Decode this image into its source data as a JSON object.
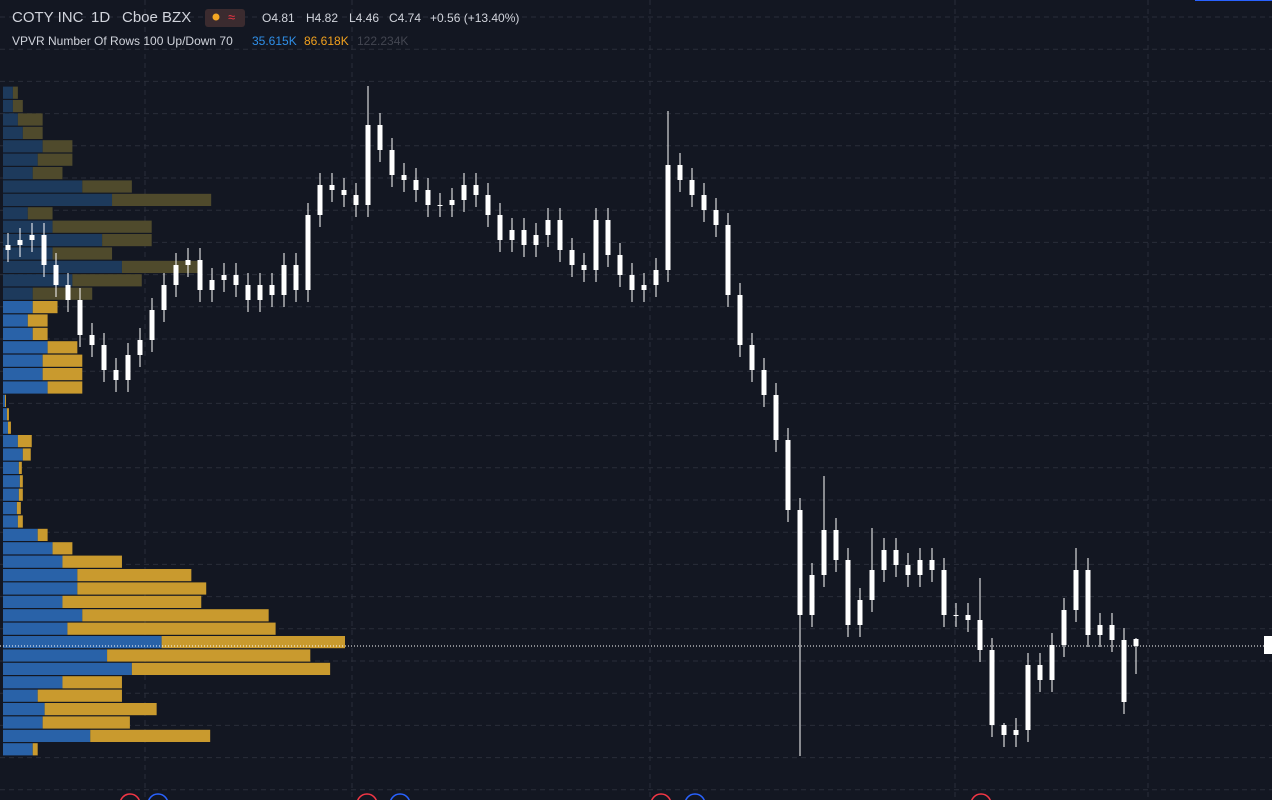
{
  "chart_data": {
    "type": "candlestick",
    "title": "COTY INC",
    "interval": "1D",
    "exchange": "Cboe BZX",
    "ohlc_labels": [
      "O4.81",
      "H4.82",
      "L4.46",
      "C4.74"
    ],
    "change": "+0.56 (+13.40%)",
    "indicator": "VPVR Number Of Rows 100 Up/Down 70",
    "indicator_values": [
      "35.615K",
      "86.618K",
      "122.234K"
    ],
    "ylim": [
      3.2,
      11.2
    ],
    "candle_color": "#ffffff",
    "open": [
      8.7,
      8.75,
      8.8,
      8.85,
      8.55,
      8.35,
      8.2,
      7.85,
      7.75,
      7.5,
      7.4,
      7.65,
      7.8,
      8.1,
      8.35,
      8.55,
      8.6,
      8.3,
      8.4,
      8.45,
      8.35,
      8.2,
      8.35,
      8.25,
      8.55,
      8.3,
      9.05,
      9.35,
      9.3,
      9.25,
      9.15,
      9.95,
      9.7,
      9.45,
      9.4,
      9.3,
      9.15,
      9.15,
      9.2,
      9.35,
      9.25,
      9.05,
      8.8,
      8.9,
      8.75,
      8.85,
      9.0,
      8.7,
      8.55,
      8.5,
      9.0,
      8.65,
      8.45,
      8.3,
      8.35,
      8.5,
      9.55,
      9.4,
      9.25,
      9.1,
      8.95,
      8.25,
      7.75,
      7.5,
      7.25,
      6.8,
      6.1,
      5.05,
      5.45,
      5.9,
      5.6,
      4.95,
      5.2,
      5.5,
      5.7,
      5.55,
      5.45,
      5.6,
      5.5,
      5.05,
      5.05,
      5.0,
      4.7,
      3.95,
      3.85,
      3.9,
      4.55,
      4.4,
      4.75,
      5.1,
      5.5,
      4.85,
      4.95,
      4.8,
      4.81
    ],
    "high": [
      8.87,
      8.92,
      8.97,
      8.97,
      8.67,
      8.47,
      8.32,
      7.97,
      7.87,
      7.62,
      7.77,
      7.92,
      8.22,
      8.47,
      8.67,
      8.72,
      8.72,
      8.52,
      8.57,
      8.57,
      8.47,
      8.47,
      8.47,
      8.67,
      8.67,
      9.17,
      9.47,
      9.47,
      9.42,
      9.37,
      10.34,
      10.07,
      9.82,
      9.57,
      9.52,
      9.42,
      9.27,
      9.32,
      9.47,
      9.47,
      9.37,
      9.17,
      9.02,
      9.02,
      8.97,
      9.12,
      9.12,
      8.82,
      8.67,
      9.12,
      9.12,
      8.77,
      8.57,
      8.47,
      8.62,
      10.09,
      9.67,
      9.52,
      9.37,
      9.22,
      9.07,
      8.37,
      7.87,
      7.62,
      7.37,
      6.92,
      6.22,
      5.57,
      6.44,
      6.02,
      5.72,
      5.32,
      5.92,
      5.82,
      5.82,
      5.67,
      5.72,
      5.72,
      5.62,
      5.17,
      5.17,
      5.42,
      4.82,
      3.97,
      4.02,
      4.67,
      4.67,
      4.87,
      5.22,
      5.72,
      5.62,
      5.07,
      5.07,
      4.92,
      4.82
    ],
    "low": [
      8.58,
      8.63,
      8.68,
      8.43,
      8.23,
      8.08,
      7.73,
      7.63,
      7.38,
      7.28,
      7.28,
      7.53,
      7.68,
      7.98,
      8.23,
      8.43,
      8.18,
      8.18,
      8.28,
      8.23,
      8.08,
      8.08,
      8.13,
      8.13,
      8.18,
      8.18,
      8.93,
      9.18,
      9.13,
      9.03,
      9.03,
      9.58,
      9.33,
      9.28,
      9.18,
      9.03,
      9.03,
      9.03,
      9.08,
      9.13,
      8.93,
      8.68,
      8.68,
      8.63,
      8.63,
      8.73,
      8.58,
      8.43,
      8.38,
      8.38,
      8.53,
      8.33,
      8.18,
      8.18,
      8.23,
      8.38,
      9.28,
      9.13,
      8.98,
      8.83,
      8.13,
      7.63,
      7.38,
      7.13,
      6.68,
      5.98,
      3.64,
      4.93,
      5.33,
      5.48,
      4.83,
      4.83,
      5.08,
      5.38,
      5.43,
      5.33,
      5.33,
      5.38,
      4.93,
      4.93,
      4.88,
      4.58,
      3.83,
      3.73,
      3.73,
      3.78,
      4.28,
      4.28,
      4.63,
      4.98,
      4.73,
      4.73,
      4.68,
      4.06,
      4.46
    ],
    "close": [
      8.75,
      8.8,
      8.85,
      8.55,
      8.35,
      8.2,
      7.85,
      7.75,
      7.5,
      7.4,
      7.65,
      7.8,
      8.1,
      8.35,
      8.55,
      8.6,
      8.3,
      8.4,
      8.45,
      8.35,
      8.2,
      8.35,
      8.25,
      8.55,
      8.3,
      9.05,
      9.35,
      9.3,
      9.25,
      9.15,
      9.95,
      9.7,
      9.45,
      9.4,
      9.3,
      9.15,
      9.15,
      9.2,
      9.35,
      9.25,
      9.05,
      8.8,
      8.9,
      8.75,
      8.85,
      9.0,
      8.7,
      8.55,
      8.5,
      9.0,
      8.65,
      8.45,
      8.3,
      8.35,
      8.5,
      9.55,
      9.4,
      9.25,
      9.1,
      8.95,
      8.25,
      7.75,
      7.5,
      7.25,
      6.8,
      6.1,
      5.05,
      5.45,
      5.9,
      5.6,
      4.95,
      5.2,
      5.5,
      5.7,
      5.55,
      5.45,
      5.6,
      5.5,
      5.05,
      5.05,
      5.0,
      4.7,
      3.95,
      3.85,
      3.9,
      4.55,
      4.4,
      4.75,
      5.1,
      5.5,
      4.85,
      4.95,
      4.8,
      4.18,
      4.74
    ],
    "volume_profile": {
      "bins": [
        3.64,
        3.774,
        3.908,
        4.042,
        4.176,
        4.31,
        4.444,
        4.578,
        4.712,
        4.846,
        4.98,
        5.114,
        5.248,
        5.382,
        5.516,
        5.65,
        5.784,
        5.918,
        6.052,
        6.186,
        6.32,
        6.454,
        6.588,
        6.722,
        6.856,
        6.99,
        7.124,
        7.258,
        7.392,
        7.526,
        7.66,
        7.794,
        7.928,
        8.062,
        8.196,
        8.33,
        8.464,
        8.598,
        8.732,
        8.866,
        9.0,
        9.134,
        9.268,
        9.402,
        9.536,
        9.67,
        9.804,
        9.938,
        10.072,
        10.206,
        10.34
      ],
      "up": [
        30,
        88,
        40,
        42,
        35,
        60,
        130,
        105,
        160,
        65,
        80,
        60,
        75,
        75,
        60,
        50,
        35,
        15,
        14,
        16,
        17,
        16,
        20,
        15,
        5,
        4,
        2,
        45,
        40,
        40,
        45,
        30,
        25,
        30,
        30,
        70,
        120,
        50,
        100,
        50,
        25,
        110,
        80,
        30,
        35,
        40,
        20,
        15,
        10,
        10
      ],
      "down": [
        5,
        121,
        88,
        113,
        85,
        60,
        200,
        205,
        185,
        210,
        188,
        140,
        130,
        115,
        60,
        20,
        10,
        5,
        4,
        4,
        3,
        3,
        8,
        14,
        3,
        2,
        1,
        35,
        40,
        40,
        30,
        15,
        20,
        25,
        60,
        70,
        80,
        60,
        50,
        100,
        25,
        100,
        50,
        30,
        35,
        30,
        20,
        25,
        10,
        5
      ],
      "value_area": [
        3.64,
        8.24
      ],
      "up_color": "#2962a8",
      "down_color": "#c99a2e",
      "up_dim_color": "#1d3a5c",
      "down_dim_color": "#4f4a2c"
    }
  }
}
